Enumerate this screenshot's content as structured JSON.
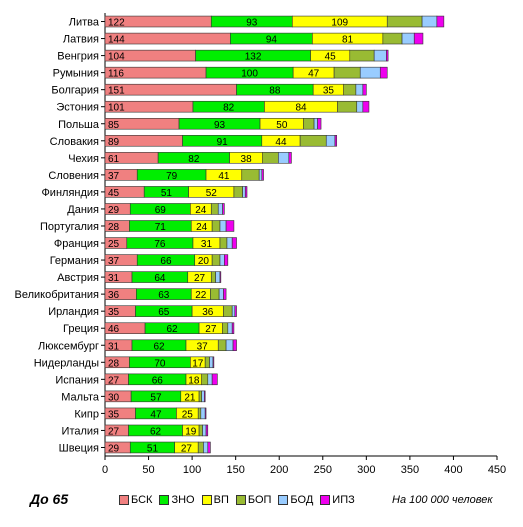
{
  "footer": {
    "group_label": "До 65",
    "unit_note": "На 100 000 человек"
  },
  "legend": [
    {
      "name": "БСК",
      "color": "#f08080"
    },
    {
      "name": "ЗНО",
      "color": "#00ee00"
    },
    {
      "name": "ВП",
      "color": "#ffff00"
    },
    {
      "name": "БОП",
      "color": "#99bb33"
    },
    {
      "name": "БОД",
      "color": "#99ccff"
    },
    {
      "name": "ИПЗ",
      "color": "#ee00ee"
    }
  ],
  "chart_data": {
    "type": "bar",
    "orientation": "horizontal",
    "stacked": true,
    "xlim": [
      0,
      450
    ],
    "xticks": [
      0,
      50,
      100,
      150,
      200,
      250,
      300,
      350,
      400,
      450
    ],
    "grid": false,
    "legend_position": "bottom",
    "categories": [
      "Литва",
      "Латвия",
      "Венгрия",
      "Румыния",
      "Болгария",
      "Эстония",
      "Польша",
      "Словакия",
      "Чехия",
      "Словения",
      "Финляндия",
      "Дания",
      "Португалия",
      "Франция",
      "Германия",
      "Австрия",
      "Великобритания",
      "Ирландия",
      "Греция",
      "Люксембург",
      "Нидерланды",
      "Испания",
      "Мальта",
      "Кипр",
      "Италия",
      "Швеция"
    ],
    "series": [
      {
        "name": "БСК",
        "color": "#f08080",
        "labeled": true,
        "values": [
          122,
          144,
          104,
          116,
          151,
          101,
          85,
          89,
          61,
          37,
          45,
          29,
          28,
          25,
          37,
          31,
          36,
          35,
          46,
          31,
          28,
          27,
          30,
          35,
          27,
          29
        ]
      },
      {
        "name": "ЗНО",
        "color": "#00ee00",
        "labeled": true,
        "values": [
          93,
          94,
          132,
          100,
          88,
          82,
          93,
          91,
          82,
          79,
          51,
          69,
          71,
          76,
          66,
          64,
          63,
          65,
          62,
          62,
          70,
          66,
          57,
          47,
          62,
          51
        ]
      },
      {
        "name": "ВП",
        "color": "#ffff00",
        "labeled": true,
        "values": [
          109,
          81,
          45,
          47,
          35,
          84,
          50,
          44,
          38,
          41,
          52,
          24,
          24,
          31,
          20,
          27,
          22,
          36,
          27,
          37,
          17,
          18,
          21,
          25,
          19,
          27
        ]
      },
      {
        "name": "БОП",
        "color": "#99bb33",
        "labeled": false,
        "values": [
          40,
          22,
          28,
          30,
          14,
          22,
          12,
          30,
          18,
          20,
          10,
          8,
          9,
          8,
          9,
          5,
          10,
          10,
          6,
          9,
          5,
          7,
          3,
          3,
          4,
          6
        ]
      },
      {
        "name": "БОД",
        "color": "#99ccff",
        "labeled": false,
        "values": [
          17,
          14,
          14,
          23,
          8,
          7,
          4,
          10,
          12,
          3,
          3,
          5,
          7,
          6,
          5,
          5,
          5,
          3,
          5,
          8,
          4,
          5,
          3,
          5,
          4,
          5
        ]
      },
      {
        "name": "ИПЗ",
        "color": "#ee00ee",
        "labeled": false,
        "values": [
          8,
          10,
          2,
          8,
          4,
          7,
          4,
          2,
          3,
          2,
          2,
          2,
          9,
          5,
          4,
          1,
          3,
          2,
          2,
          4,
          1,
          6,
          1,
          1,
          2,
          3
        ]
      }
    ]
  }
}
